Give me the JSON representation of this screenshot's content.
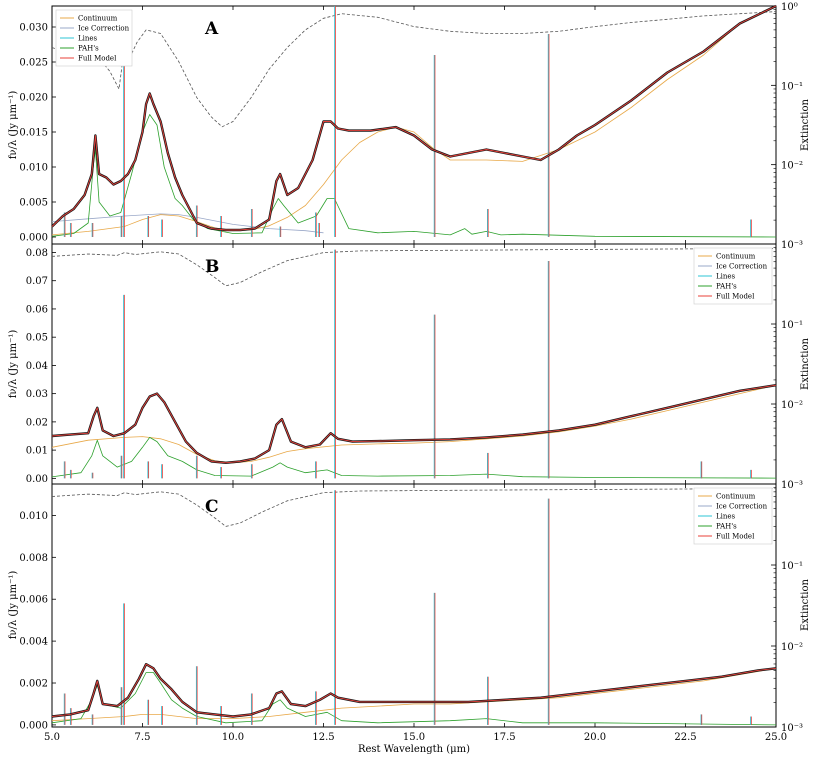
{
  "figure": {
    "xlabel": "Rest Wavelength (μm)",
    "x_ticks": [
      "5.0",
      "7.5",
      "10.0",
      "12.5",
      "15.0",
      "17.5",
      "20.0",
      "22.5",
      "25.0"
    ],
    "right_ticks": [
      "10⁻³",
      "10⁻²",
      "10⁻¹",
      "10⁰"
    ]
  },
  "legend_labels": [
    "Continuum",
    "Ice Correction",
    "Lines",
    "PAH's",
    "Full Model"
  ],
  "colors": {
    "continuum": "#e8a848",
    "ice": "#9aa8c8",
    "lines": "#2ec4d6",
    "pahs": "#2ca02c",
    "model": "#e8403a",
    "data": "#1a1a1a",
    "extinction": "#555555"
  },
  "chart_data": [
    {
      "type": "line",
      "panel": "A",
      "ylabel": "fν/λ (Jy μm⁻¹)",
      "ylabel_right": "Extinction",
      "xlim": [
        5,
        25
      ],
      "ylim": [
        -0.001,
        0.033
      ],
      "yticks": [
        "0.000",
        "0.005",
        "0.010",
        "0.015",
        "0.020",
        "0.025",
        "0.030"
      ],
      "right_axis": {
        "scale": "log",
        "ylim": [
          0.001,
          1
        ]
      },
      "legend_position": "top-left",
      "series": [
        {
          "name": "Full Model",
          "x": [
            5.0,
            5.3,
            5.6,
            5.9,
            6.1,
            6.2,
            6.3,
            6.5,
            6.7,
            6.9,
            7.1,
            7.3,
            7.5,
            7.6,
            7.7,
            7.8,
            8.0,
            8.2,
            8.4,
            8.6,
            8.8,
            9.0,
            9.4,
            9.8,
            10.2,
            10.6,
            11.0,
            11.2,
            11.3,
            11.5,
            11.8,
            12.2,
            12.5,
            12.7,
            12.9,
            13.2,
            13.8,
            14.5,
            15.0,
            15.5,
            16.0,
            16.5,
            17.0,
            17.5,
            18.0,
            18.5,
            19.0,
            19.5,
            20.0,
            21.0,
            22.0,
            23.0,
            24.0,
            25.0
          ],
          "y": [
            0.0015,
            0.003,
            0.004,
            0.006,
            0.009,
            0.0145,
            0.009,
            0.0085,
            0.0075,
            0.008,
            0.009,
            0.011,
            0.015,
            0.019,
            0.0205,
            0.019,
            0.0165,
            0.012,
            0.0085,
            0.006,
            0.004,
            0.002,
            0.0012,
            0.001,
            0.001,
            0.0012,
            0.0025,
            0.008,
            0.009,
            0.006,
            0.007,
            0.011,
            0.0165,
            0.0165,
            0.0155,
            0.0152,
            0.0152,
            0.0157,
            0.0145,
            0.0125,
            0.0115,
            0.012,
            0.0125,
            0.012,
            0.0115,
            0.011,
            0.0125,
            0.0145,
            0.016,
            0.0195,
            0.0235,
            0.0265,
            0.0305,
            0.033
          ]
        },
        {
          "name": "Continuum",
          "x": [
            5.0,
            6.0,
            7.0,
            7.5,
            8.0,
            8.5,
            9.0,
            9.5,
            10.0,
            10.5,
            11.0,
            11.5,
            12.0,
            12.5,
            13.0,
            13.5,
            14.0,
            14.5,
            15.0,
            15.5,
            16.0,
            17.0,
            18.0,
            19.0,
            20.0,
            21.0,
            22.0,
            23.0,
            24.0,
            25.0
          ],
          "y": [
            0.0003,
            0.0008,
            0.0015,
            0.0025,
            0.0032,
            0.003,
            0.0022,
            0.0013,
            0.0009,
            0.001,
            0.0016,
            0.0028,
            0.0045,
            0.0075,
            0.011,
            0.0135,
            0.015,
            0.0157,
            0.015,
            0.0128,
            0.011,
            0.011,
            0.0108,
            0.0125,
            0.015,
            0.0185,
            0.0225,
            0.026,
            0.0305,
            0.033
          ]
        },
        {
          "name": "Ice Correction",
          "x": [
            5.0,
            6.0,
            7.0,
            8.0,
            8.5,
            9.0,
            10.0,
            11.0,
            12.0,
            12.5
          ],
          "y": [
            0.0022,
            0.0026,
            0.003,
            0.0033,
            0.0032,
            0.0028,
            0.0018,
            0.0012,
            0.0009,
            0.0006
          ]
        },
        {
          "name": "PAH's",
          "x": [
            5.0,
            5.6,
            6.0,
            6.15,
            6.2,
            6.3,
            6.6,
            6.9,
            7.2,
            7.5,
            7.7,
            7.9,
            8.1,
            8.4,
            8.6,
            8.9,
            9.3,
            10.0,
            10.8,
            11.1,
            11.25,
            11.4,
            11.8,
            12.3,
            12.6,
            12.8,
            13.2,
            14.0,
            15.0,
            16.0,
            16.4,
            16.6,
            17.0,
            17.4,
            18.0,
            20.0,
            25.0
          ],
          "y": [
            0.0001,
            0.0005,
            0.002,
            0.0105,
            0.0125,
            0.005,
            0.003,
            0.0035,
            0.009,
            0.015,
            0.0175,
            0.016,
            0.01,
            0.0055,
            0.0045,
            0.0025,
            0.0012,
            0.0005,
            0.0006,
            0.004,
            0.0055,
            0.0045,
            0.002,
            0.003,
            0.0055,
            0.0055,
            0.0012,
            0.0006,
            0.0008,
            0.0003,
            0.0012,
            0.0004,
            0.0008,
            0.0003,
            0.0004,
            0.0001,
            0.0
          ]
        },
        {
          "name": "Lines",
          "x": [
            5.34,
            5.51,
            6.11,
            6.91,
            6.98,
            7.65,
            8.03,
            8.99,
            9.66,
            10.51,
            11.3,
            12.28,
            12.37,
            12.81,
            15.56,
            17.03,
            18.71,
            24.3
          ],
          "y": [
            0.0035,
            0.002,
            0.002,
            0.003,
            0.031,
            0.003,
            0.0025,
            0.0045,
            0.003,
            0.004,
            0.0015,
            0.0035,
            0.002,
            0.033,
            0.026,
            0.004,
            0.029,
            0.0025
          ]
        }
      ],
      "extinction": {
        "x": [
          5.0,
          5.5,
          6.0,
          6.3,
          6.6,
          6.85,
          7.0,
          7.2,
          7.35,
          7.6,
          8.0,
          8.5,
          9.0,
          9.4,
          9.7,
          10.0,
          10.5,
          11.0,
          11.5,
          12.0,
          12.5,
          13.0,
          14.0,
          15.0,
          16.0,
          17.0,
          18.0,
          19.0,
          20.0,
          21.0,
          22.0,
          23.0,
          24.0,
          25.0
        ],
        "y": [
          0.3,
          0.25,
          0.28,
          0.22,
          0.15,
          0.09,
          0.3,
          0.25,
          0.35,
          0.5,
          0.45,
          0.2,
          0.07,
          0.04,
          0.03,
          0.035,
          0.07,
          0.16,
          0.3,
          0.5,
          0.7,
          0.8,
          0.72,
          0.55,
          0.48,
          0.45,
          0.45,
          0.48,
          0.55,
          0.62,
          0.68,
          0.75,
          0.8,
          0.85
        ]
      }
    },
    {
      "type": "line",
      "panel": "B",
      "ylabel": "fν/λ (Jy μm⁻¹)",
      "ylabel_right": "Extinction",
      "xlim": [
        5,
        25
      ],
      "ylim": [
        -0.002,
        0.083
      ],
      "yticks": [
        "0.00",
        "0.01",
        "0.02",
        "0.03",
        "0.04",
        "0.05",
        "0.06",
        "0.07",
        "0.08"
      ],
      "right_axis": {
        "scale": "log",
        "ylim": [
          0.001,
          1
        ]
      },
      "legend_position": "top-right",
      "series": [
        {
          "name": "Full Model",
          "x": [
            5.0,
            5.5,
            6.0,
            6.15,
            6.25,
            6.4,
            6.7,
            7.0,
            7.3,
            7.5,
            7.7,
            7.9,
            8.1,
            8.4,
            8.7,
            9.0,
            9.4,
            9.8,
            10.2,
            10.6,
            11.0,
            11.2,
            11.35,
            11.6,
            12.0,
            12.4,
            12.7,
            12.9,
            13.3,
            14.0,
            15.0,
            16.0,
            17.0,
            18.0,
            19.0,
            20.0,
            21.0,
            22.0,
            23.0,
            24.0,
            25.0
          ],
          "y": [
            0.015,
            0.0155,
            0.016,
            0.022,
            0.025,
            0.017,
            0.015,
            0.016,
            0.019,
            0.025,
            0.029,
            0.03,
            0.027,
            0.02,
            0.013,
            0.009,
            0.006,
            0.0055,
            0.006,
            0.007,
            0.01,
            0.019,
            0.021,
            0.013,
            0.011,
            0.012,
            0.016,
            0.014,
            0.013,
            0.0132,
            0.0135,
            0.0138,
            0.0145,
            0.0155,
            0.017,
            0.019,
            0.022,
            0.025,
            0.028,
            0.031,
            0.033
          ]
        },
        {
          "name": "Continuum",
          "x": [
            5.0,
            6.0,
            7.0,
            7.5,
            8.0,
            8.5,
            9.0,
            9.5,
            10.0,
            10.5,
            11.0,
            11.5,
            12.0,
            13.0,
            14.0,
            15.0,
            16.0,
            17.0,
            18.0,
            19.0,
            20.0,
            21.0,
            22.0,
            23.0,
            24.0,
            25.0
          ],
          "y": [
            0.011,
            0.0135,
            0.0145,
            0.0148,
            0.014,
            0.012,
            0.0085,
            0.0062,
            0.0055,
            0.006,
            0.0075,
            0.0095,
            0.0105,
            0.0118,
            0.0122,
            0.0125,
            0.013,
            0.014,
            0.015,
            0.0165,
            0.0185,
            0.021,
            0.024,
            0.027,
            0.03,
            0.033
          ]
        },
        {
          "name": "PAH's",
          "x": [
            5.0,
            5.8,
            6.1,
            6.25,
            6.4,
            6.8,
            7.2,
            7.5,
            7.7,
            7.9,
            8.2,
            8.6,
            9.0,
            9.5,
            10.5,
            11.1,
            11.3,
            11.5,
            12.0,
            12.6,
            13.0,
            14.0,
            16.0,
            17.0,
            18.0,
            20.0,
            25.0
          ],
          "y": [
            0.0005,
            0.002,
            0.008,
            0.0135,
            0.008,
            0.004,
            0.006,
            0.011,
            0.0145,
            0.013,
            0.008,
            0.006,
            0.003,
            0.001,
            0.0008,
            0.004,
            0.0055,
            0.004,
            0.002,
            0.003,
            0.001,
            0.0008,
            0.001,
            0.0015,
            0.0006,
            0.0003,
            0.0001
          ]
        },
        {
          "name": "Lines",
          "x": [
            5.34,
            5.51,
            6.11,
            6.91,
            6.98,
            7.65,
            8.03,
            8.99,
            9.66,
            10.51,
            12.28,
            12.81,
            15.56,
            17.03,
            18.71,
            22.93,
            24.3
          ],
          "y": [
            0.006,
            0.003,
            0.002,
            0.008,
            0.065,
            0.006,
            0.005,
            0.008,
            0.004,
            0.005,
            0.006,
            0.081,
            0.058,
            0.009,
            0.077,
            0.006,
            0.003
          ]
        }
      ],
      "extinction": {
        "x": [
          5.0,
          6.0,
          6.8,
          7.0,
          7.3,
          8.0,
          8.5,
          9.0,
          9.5,
          9.8,
          10.2,
          10.8,
          11.5,
          12.5,
          13.5,
          15.0,
          17.0,
          19.0,
          21.0,
          23.0,
          25.0
        ],
        "y": [
          0.7,
          0.75,
          0.72,
          0.78,
          0.74,
          0.8,
          0.75,
          0.55,
          0.38,
          0.3,
          0.33,
          0.45,
          0.62,
          0.78,
          0.82,
          0.83,
          0.84,
          0.85,
          0.86,
          0.87,
          0.88
        ]
      }
    },
    {
      "type": "line",
      "panel": "C",
      "ylabel": "fν/λ (Jy μm⁻¹)",
      "ylabel_right": "Extinction",
      "xlim": [
        5,
        25
      ],
      "ylim": [
        -0.0001,
        0.0115
      ],
      "yticks": [
        "0.000",
        "0.002",
        "0.004",
        "0.006",
        "0.008",
        "0.010"
      ],
      "right_axis": {
        "scale": "log",
        "ylim": [
          0.001,
          1
        ]
      },
      "legend_position": "top-right",
      "series": [
        {
          "name": "Full Model",
          "x": [
            5.0,
            5.5,
            6.0,
            6.15,
            6.25,
            6.4,
            6.8,
            7.1,
            7.4,
            7.6,
            7.8,
            8.0,
            8.3,
            8.6,
            9.0,
            9.5,
            10.0,
            10.5,
            11.0,
            11.2,
            11.35,
            11.6,
            12.0,
            12.4,
            12.7,
            12.9,
            13.5,
            14.5,
            15.5,
            16.5,
            17.5,
            18.5,
            19.5,
            20.5,
            21.5,
            22.5,
            23.5,
            24.5,
            25.0
          ],
          "y": [
            0.0004,
            0.0005,
            0.0007,
            0.0015,
            0.0021,
            0.001,
            0.0009,
            0.0013,
            0.0022,
            0.0029,
            0.0027,
            0.0022,
            0.0017,
            0.0011,
            0.0006,
            0.0005,
            0.0004,
            0.0005,
            0.0008,
            0.0015,
            0.0016,
            0.001,
            0.0009,
            0.0012,
            0.0015,
            0.0013,
            0.0011,
            0.0011,
            0.0011,
            0.0011,
            0.0012,
            0.0013,
            0.0015,
            0.0017,
            0.0019,
            0.0021,
            0.0023,
            0.0026,
            0.0027
          ]
        },
        {
          "name": "Continuum",
          "x": [
            5.0,
            6.0,
            7.0,
            7.5,
            8.0,
            8.5,
            9.0,
            9.5,
            10.0,
            11.0,
            12.0,
            13.0,
            14.0,
            15.0,
            16.0,
            17.0,
            18.0,
            19.0,
            20.0,
            21.0,
            22.0,
            23.0,
            24.0,
            25.0
          ],
          "y": [
            0.0002,
            0.0003,
            0.0004,
            0.0005,
            0.0005,
            0.0004,
            0.0003,
            0.0003,
            0.0003,
            0.0004,
            0.0006,
            0.0008,
            0.0009,
            0.001,
            0.001,
            0.0011,
            0.0012,
            0.0013,
            0.0015,
            0.0017,
            0.0019,
            0.0021,
            0.0024,
            0.0027
          ]
        },
        {
          "name": "PAH's",
          "x": [
            5.0,
            5.8,
            6.1,
            6.25,
            6.4,
            6.9,
            7.3,
            7.6,
            7.8,
            8.0,
            8.3,
            8.6,
            9.0,
            9.8,
            10.8,
            11.1,
            11.3,
            11.5,
            12.0,
            12.6,
            13.0,
            14.0,
            16.0,
            17.0,
            18.0,
            20.0,
            25.0
          ],
          "y": [
            0.0001,
            0.0003,
            0.0012,
            0.0019,
            0.001,
            0.0008,
            0.0015,
            0.0025,
            0.0025,
            0.002,
            0.0012,
            0.0008,
            0.0004,
            0.0001,
            0.0002,
            0.001,
            0.0012,
            0.0008,
            0.0004,
            0.0006,
            0.0002,
            0.0001,
            0.0002,
            0.0003,
            0.0001,
            0.0001,
            0.0
          ]
        },
        {
          "name": "Lines",
          "x": [
            5.34,
            5.51,
            6.11,
            6.91,
            6.98,
            7.65,
            8.03,
            8.99,
            9.66,
            10.51,
            12.28,
            12.81,
            15.56,
            17.03,
            18.71,
            22.93,
            24.3
          ],
          "y": [
            0.0015,
            0.0008,
            0.0005,
            0.0018,
            0.0058,
            0.0012,
            0.0009,
            0.0028,
            0.0009,
            0.0015,
            0.0016,
            0.0112,
            0.0063,
            0.0023,
            0.0108,
            0.0005,
            0.0004
          ]
        }
      ],
      "extinction": {
        "x": [
          5.0,
          6.0,
          6.8,
          7.0,
          7.3,
          8.0,
          8.5,
          9.0,
          9.5,
          9.8,
          10.2,
          10.8,
          11.5,
          12.5,
          13.5,
          15.0,
          17.0,
          19.0,
          21.0,
          23.0,
          25.0
        ],
        "y": [
          0.7,
          0.75,
          0.72,
          0.78,
          0.74,
          0.8,
          0.75,
          0.55,
          0.38,
          0.3,
          0.33,
          0.45,
          0.62,
          0.78,
          0.82,
          0.83,
          0.84,
          0.85,
          0.86,
          0.87,
          0.88
        ]
      }
    }
  ]
}
